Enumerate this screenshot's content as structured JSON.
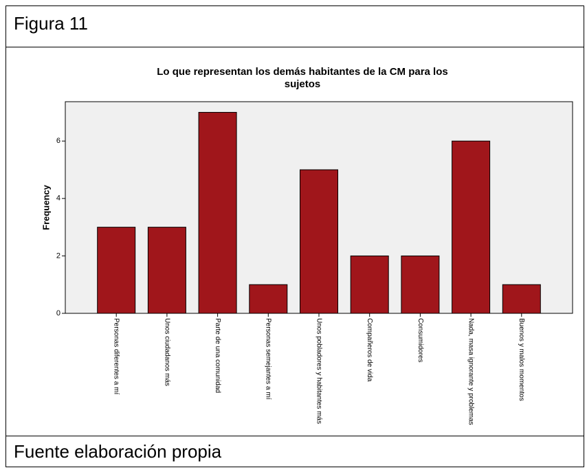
{
  "header": {
    "title": "Figura 11"
  },
  "footer": {
    "text": "Fuente elaboración propia"
  },
  "chart_data": {
    "type": "bar",
    "title": "Lo que representan los demás habitantes de la CM para los sujetos",
    "y_label": "Frequency",
    "categories": [
      "Personas diferentes a mí",
      "Unos ciudadanos más",
      "Parte de una comunidad",
      "Personas semejantes a mí",
      "Unos pobladores y habitantes más",
      "Compañeros de vida",
      "Consumidores",
      "Nada, masa ignorante y problemas",
      "Buenos y malos momentos"
    ],
    "values": [
      3,
      3,
      7,
      1,
      5,
      2,
      2,
      6,
      1
    ],
    "color": "#a0161b",
    "ylim": [
      0,
      7.37
    ],
    "yticks": [
      0,
      2,
      4,
      6
    ],
    "grid": false
  }
}
